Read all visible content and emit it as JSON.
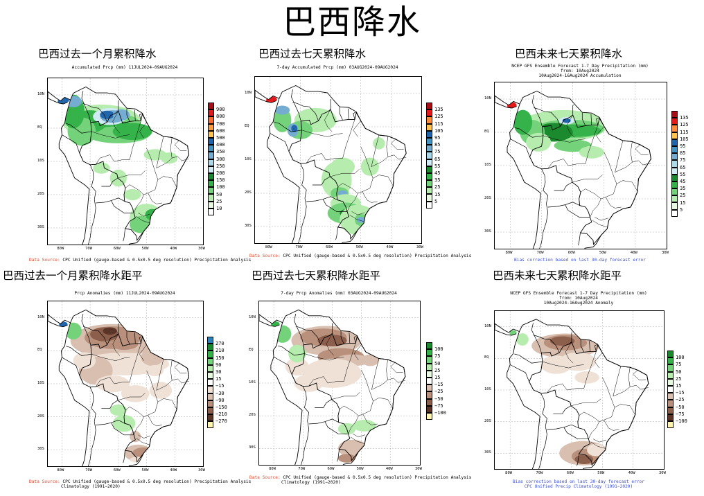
{
  "title": "巴西降水",
  "panels": [
    {
      "id": "p1",
      "heading": "巴西过去一个月累积降水",
      "subtitle": [
        "Accumulated Prcp (mm) 11JUL2024-09AUG2024"
      ],
      "yticks": [
        "10N",
        "EQ",
        "10S",
        "20S",
        "30S"
      ],
      "xticks": [
        "80W",
        "70W",
        "60W",
        "50W",
        "40W",
        "30W"
      ],
      "colorbar": {
        "labels": [
          "900",
          "800",
          "700",
          "600",
          "500",
          "400",
          "350",
          "300",
          "250",
          "200",
          "150",
          "100",
          "50",
          "25",
          "10"
        ],
        "colors": [
          "#a50f15",
          "#e31a1c",
          "#fc6a2e",
          "#fd9b3a",
          "#fec44f",
          "#2166ac",
          "#4393c3",
          "#74add1",
          "#abd9e9",
          "#d1ebf4",
          "#1b8a2e",
          "#35b34a",
          "#74d27a",
          "#b6ecae",
          "#e6f8df",
          "#ffffff"
        ]
      },
      "source": {
        "label": "Data Source:",
        "text": " CPC Unified (gauge-based & 0.5x0.5 deg resolution) Precipitation Analysis"
      }
    },
    {
      "id": "p2",
      "heading": "巴西过去七天累积降水",
      "subtitle": [
        "7-day Accumulated Prcp (mm) 03AUG2024-09AUG2024"
      ],
      "yticks": [
        "10N",
        "EQ",
        "10S",
        "20S",
        "30S"
      ],
      "xticks": [
        "80W",
        "70W",
        "60W",
        "50W",
        "40W",
        "30W"
      ],
      "colorbar": {
        "labels": [
          "135",
          "125",
          "115",
          "105",
          "95",
          "85",
          "75",
          "65",
          "55",
          "45",
          "35",
          "25",
          "15",
          "5"
        ],
        "colors": [
          "#a50f15",
          "#e31a1c",
          "#fd8d3c",
          "#fec44f",
          "#2166ac",
          "#4393c3",
          "#74add1",
          "#abd9e9",
          "#d1ebf4",
          "#1b8a2e",
          "#35b34a",
          "#74d27a",
          "#b6ecae",
          "#e6f8df",
          "#ffffff"
        ]
      },
      "source": {
        "label": "Data Source:",
        "text": " CPC Unified (gauge-based & 0.5x0.5 deg resolution) Precipitation Analysis"
      }
    },
    {
      "id": "p3",
      "heading": "巴西未来七天累积降水",
      "subtitle": [
        "NCEP GFS Ensemble Forecast 1-7 Day Precipitation (mm)",
        "from: 10Aug2024",
        "10Aug2024-16Aug2024 Accumulation"
      ],
      "yticks": [
        "10N",
        "EQ",
        "10S",
        "20S",
        "30S"
      ],
      "xticks": [
        "80W",
        "70W",
        "60W",
        "50W",
        "40W",
        "30W"
      ],
      "colorbar": {
        "labels": [
          "135",
          "125",
          "115",
          "105",
          "95",
          "85",
          "75",
          "65",
          "55",
          "45",
          "35",
          "25",
          "15",
          "5"
        ],
        "colors": [
          "#a50f15",
          "#e31a1c",
          "#fd8d3c",
          "#fec44f",
          "#2166ac",
          "#4393c3",
          "#74add1",
          "#abd9e9",
          "#d1ebf4",
          "#1b8a2e",
          "#35b34a",
          "#74d27a",
          "#b6ecae",
          "#e6f8df",
          "#ffffff"
        ]
      },
      "source": {
        "blue": [
          "Bias correction based on last 30-day forecast error"
        ]
      }
    },
    {
      "id": "p4",
      "heading": "巴西过去一个月累积降水距平",
      "subtitle": [
        "Prcp Anomalies (mm) 11JUL2024-09AUG2024"
      ],
      "yticks": [
        "10N",
        "EQ",
        "10S",
        "20S",
        "30S"
      ],
      "xticks": [
        "80W",
        "70W",
        "60W",
        "50W",
        "40W",
        "30W"
      ],
      "colorbar": {
        "labels": [
          "270",
          "210",
          "150",
          "90",
          "30",
          "15",
          "−15",
          "−30",
          "−90",
          "−150",
          "−210",
          "−270"
        ],
        "colors": [
          "#2c7fb8",
          "#1b8a2e",
          "#35b34a",
          "#74d27a",
          "#b6ecae",
          "#e6f8df",
          "#ffffff",
          "#efe1d6",
          "#d8bfb0",
          "#b8907c",
          "#8c5e4c",
          "#5a3426",
          "#fff4b0"
        ]
      },
      "source": {
        "label": "Data Source:",
        "text": " CPC Unified (gauge-based & 0.5x0.5 deg resolution) Precipitation Analysis",
        "line2": "Climatology (1991−2020)"
      }
    },
    {
      "id": "p5",
      "heading": "巴西过去七天累积降水距平",
      "subtitle": [
        "7-day Prcp Anomalies (mm) 03AUG2024-09AUG2024"
      ],
      "yticks": [
        "10N",
        "EQ",
        "10S",
        "20S",
        "30S"
      ],
      "xticks": [
        "80W",
        "70W",
        "60W",
        "50W",
        "40W",
        "30W"
      ],
      "colorbar": {
        "labels": [
          "100",
          "75",
          "50",
          "25",
          "15",
          "−15",
          "−25",
          "−50",
          "−75",
          "−100"
        ],
        "colors": [
          "#1b8a2e",
          "#35b34a",
          "#74d27a",
          "#b6ecae",
          "#e6f8df",
          "#ffffff",
          "#d8bfb0",
          "#b8907c",
          "#8c5e4c",
          "#5a3426",
          "#fff4b0"
        ]
      },
      "source": {
        "label": "Data Source:",
        "text": " CPC Unified (gauge-based & 0.5x0.5 deg resolution) Precipitation Analysis",
        "line2": "Climatology (1991−2020)"
      }
    },
    {
      "id": "p6",
      "heading": "巴西未来七天累积降水距平",
      "subtitle": [
        "NCEP GFS Ensemble Forecast 1-7 Day Precipitation (mm)",
        "from: 10Aug2024",
        "10Aug2024-16Aug2024 Anomaly"
      ],
      "yticks": [
        "10N",
        "EQ",
        "10S",
        "20S",
        "30S"
      ],
      "xticks": [
        "80W",
        "70W",
        "60W",
        "50W",
        "40W",
        "30W"
      ],
      "colorbar": {
        "labels": [
          "100",
          "75",
          "50",
          "25",
          "15",
          "−15",
          "−25",
          "−50",
          "−75",
          "−100"
        ],
        "colors": [
          "#1b8a2e",
          "#35b34a",
          "#74d27a",
          "#b6ecae",
          "#e6f8df",
          "#ffffff",
          "#d8bfb0",
          "#b8907c",
          "#8c5e4c",
          "#5a3426",
          "#fff4b0"
        ]
      },
      "source": {
        "blue": [
          "Bias correction based on last 30-day forecast error",
          "CPC Unified Precip Climatology (1991−2020)"
        ]
      }
    }
  ]
}
